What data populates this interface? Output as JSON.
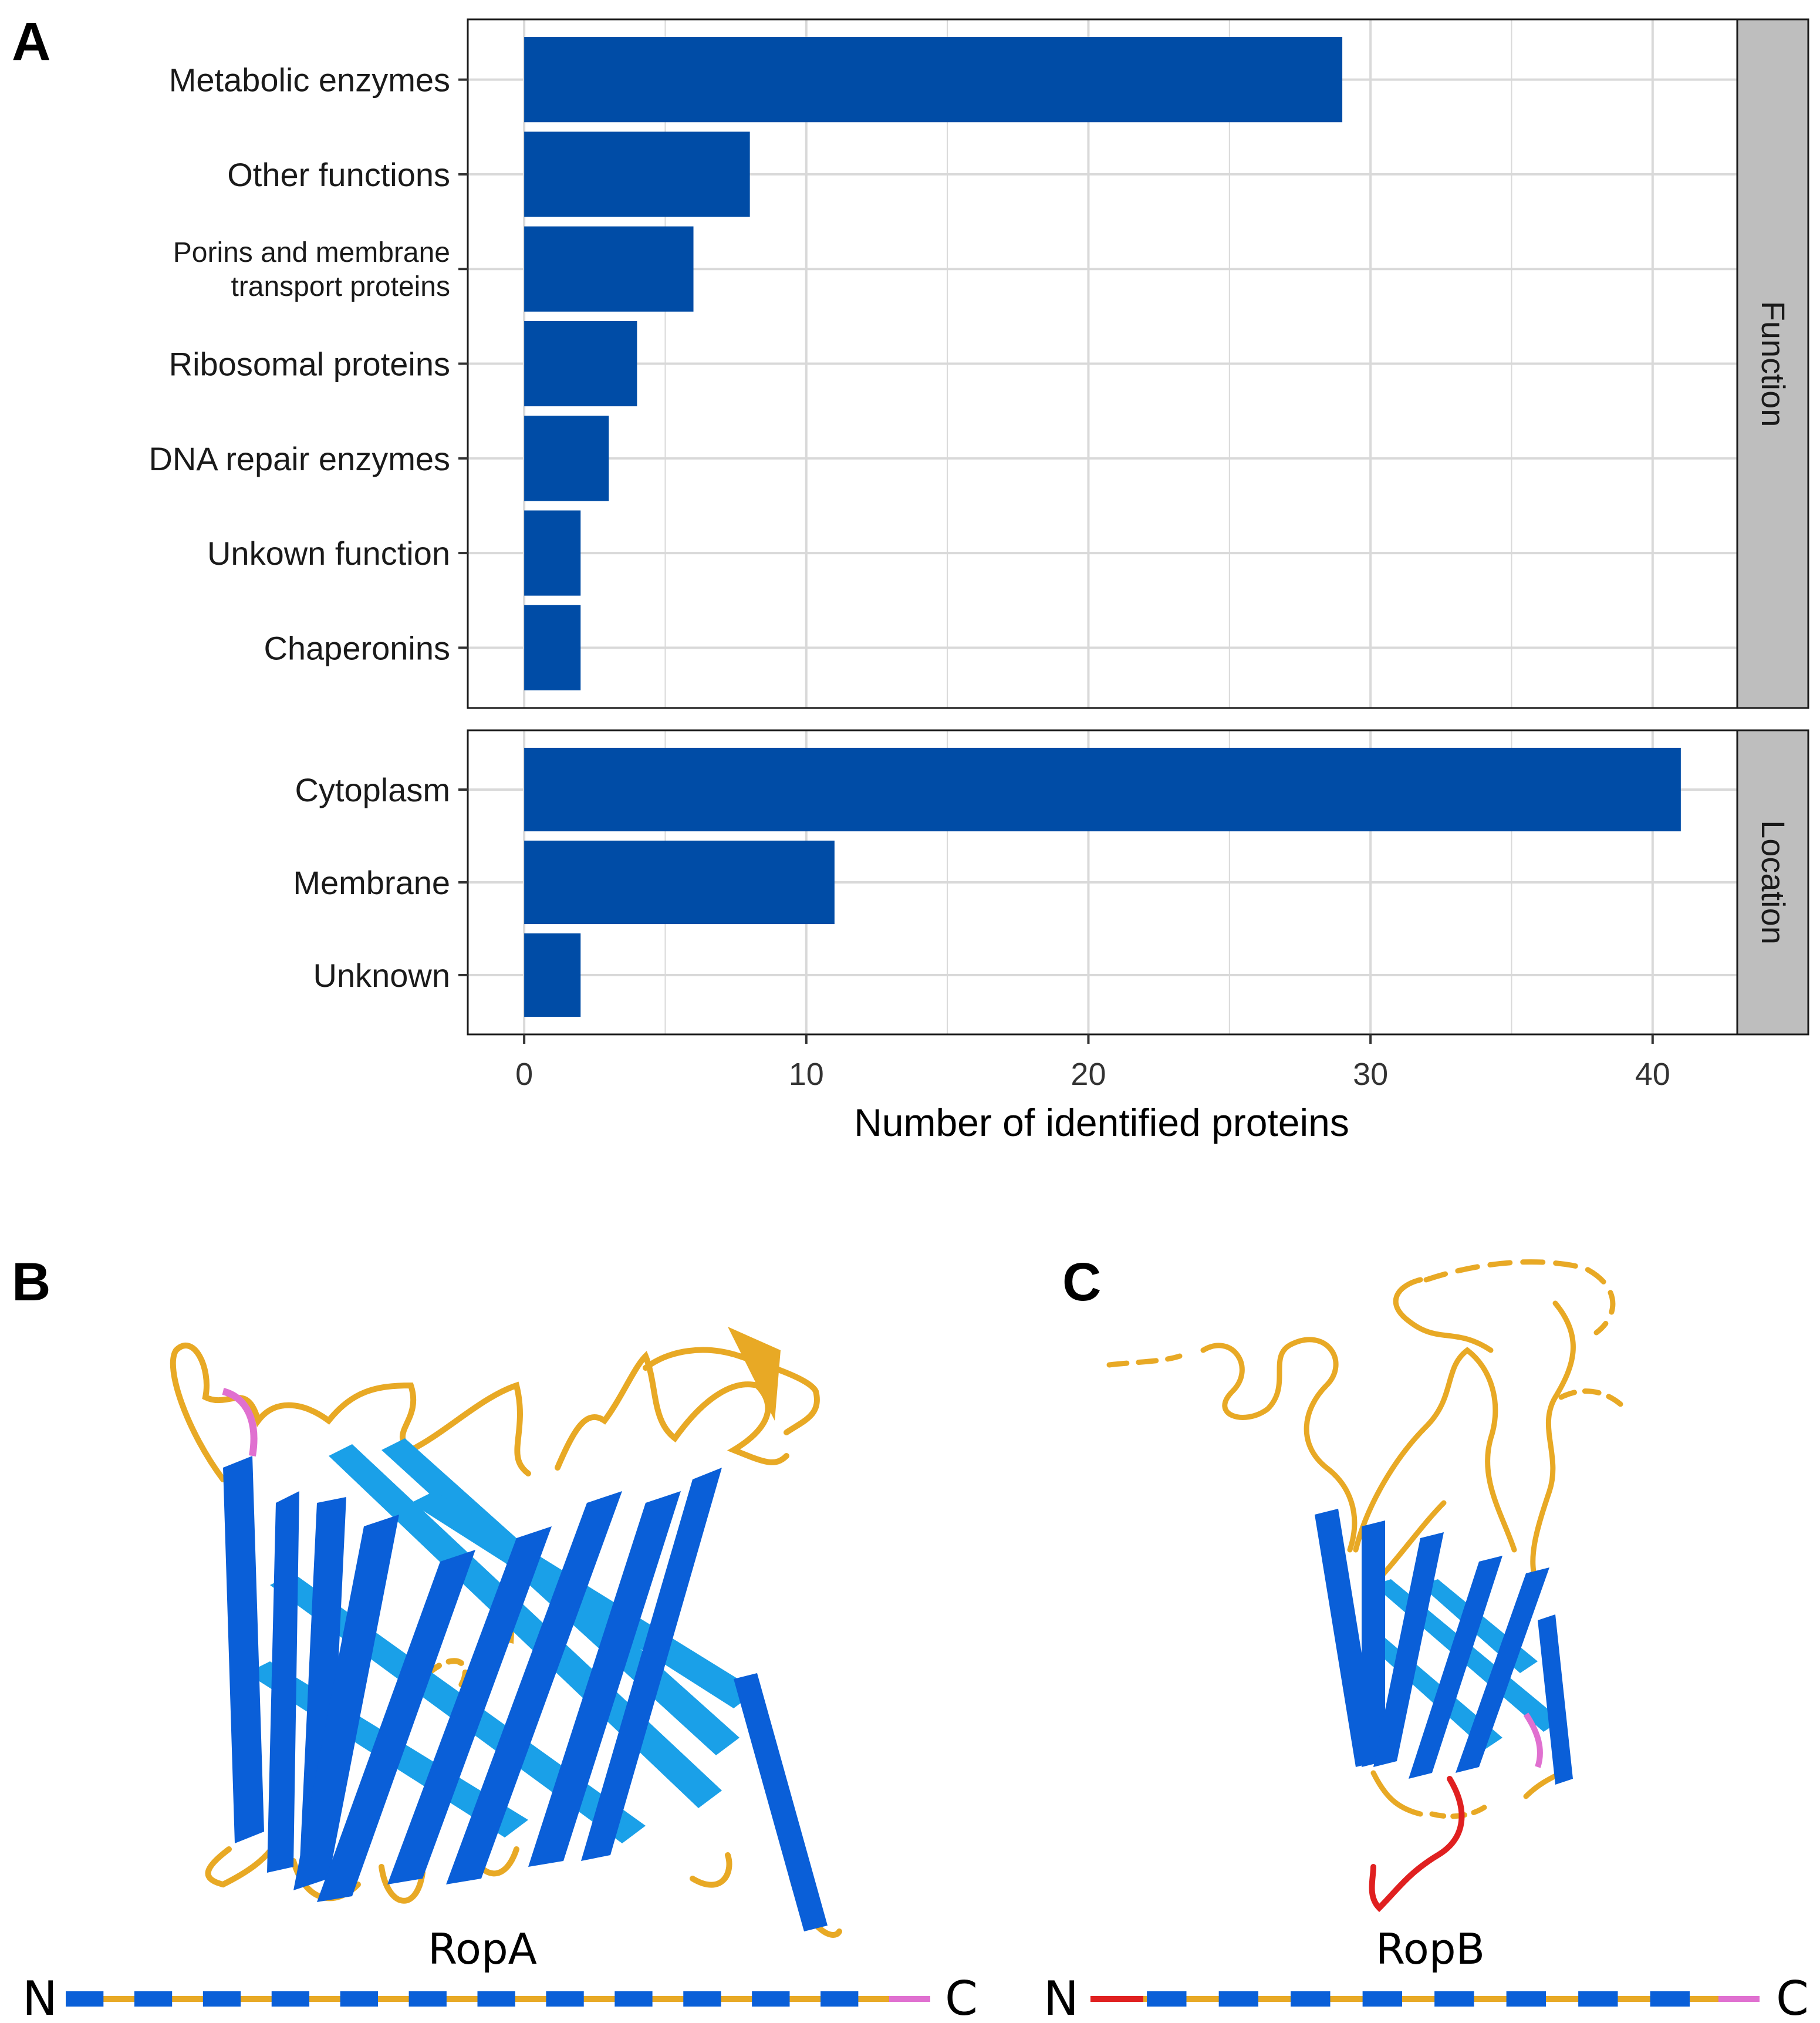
{
  "panels": {
    "a": "A",
    "b": "B",
    "c": "C"
  },
  "chart_data": {
    "type": "bar",
    "orientation": "horizontal",
    "xlabel": "Number of identified proteins",
    "xlim": [
      -2,
      43
    ],
    "xticks": [
      0,
      10,
      20,
      30,
      40
    ],
    "grid": true,
    "bar_color": "#004ca6",
    "facets": [
      {
        "strip": "Function",
        "categories": [
          "Metabolic enzymes",
          "Other functions",
          "Porins and membrane transport proteins",
          "Ribosomal proteins",
          "DNA repair enzymes",
          "Unkown function",
          "Chaperonins"
        ],
        "values": [
          29,
          8,
          6,
          4,
          3,
          2,
          2
        ]
      },
      {
        "strip": "Location",
        "categories": [
          "Cytoplasm",
          "Membrane",
          "Unknown"
        ],
        "values": [
          41,
          11,
          2
        ]
      }
    ]
  },
  "porins_label_lines": [
    "Porins and membrane",
    "transport proteins"
  ],
  "structures": {
    "ropA": {
      "name": "RopA",
      "n_label": "N",
      "c_label": "C",
      "strand_segments": 12
    },
    "ropB": {
      "name": "RopB",
      "n_label": "N",
      "c_label": "C",
      "strand_segments": 8
    }
  },
  "colors": {
    "strand": "#0a5fd8",
    "strand_light": "#1aa0e8",
    "loop": "#e8a925",
    "signal": "#e02020",
    "pink": "#e070d0",
    "strip_bg": "#bebebe"
  }
}
